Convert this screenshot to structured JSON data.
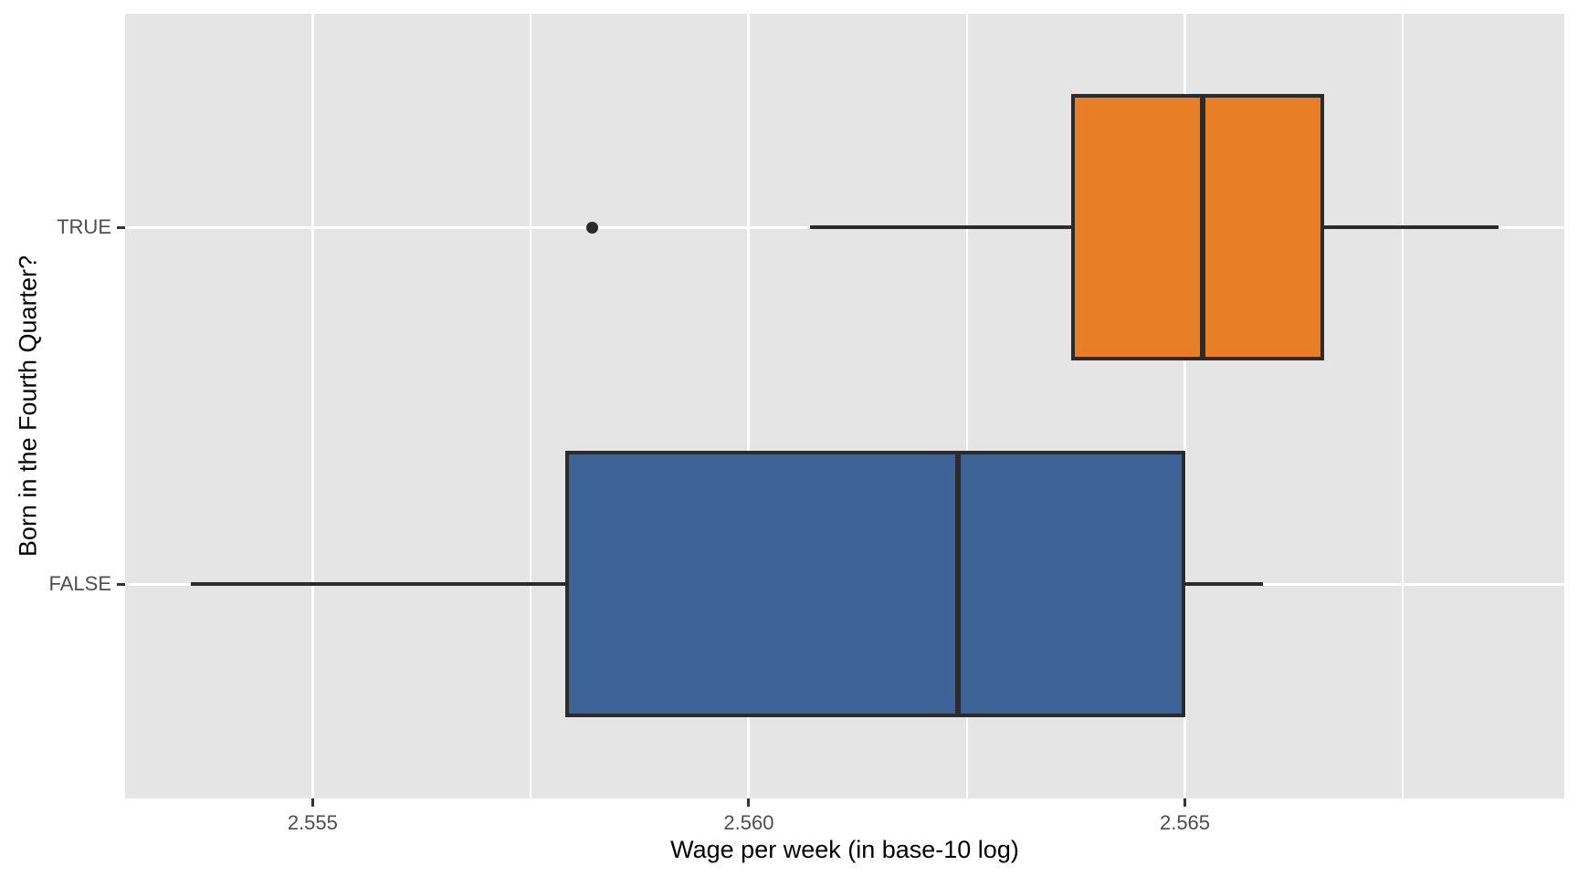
{
  "chart_data": {
    "type": "boxplot",
    "orientation": "horizontal",
    "title": "",
    "xlabel": "Wage per week (in base-10 log)",
    "ylabel": "Born in the Fourth Quarter?",
    "xlim": [
      2.55285,
      2.56935
    ],
    "x_tick_values": [
      2.555,
      2.56,
      2.565
    ],
    "x_tick_labels": [
      "2.555",
      "2.560",
      "2.565"
    ],
    "x_minor_gridlines": [
      2.5575,
      2.5625,
      2.5675
    ],
    "categories": [
      "TRUE",
      "FALSE"
    ],
    "series": [
      {
        "name": "TRUE",
        "color": "#E87E26",
        "whisker_low": 2.5607,
        "q1": 2.5637,
        "median": 2.5652,
        "q3": 2.5666,
        "whisker_high": 2.5686,
        "outliers": [
          2.5582
        ]
      },
      {
        "name": "FALSE",
        "color": "#3D6396",
        "whisker_low": 2.5536,
        "q1": 2.5579,
        "median": 2.5624,
        "q3": 2.565,
        "whisker_high": 2.5659,
        "outliers": []
      }
    ],
    "legend": "none",
    "grid": "on",
    "panel_bg": "#E5E5E5",
    "figure_bg": "#FFFFFF",
    "grid_color": "#FFFFFF",
    "box_border_color": "#2B2B2B",
    "tick_label_color": "#4D4D4D",
    "axis_title_color": "#000000",
    "tick_mark_color": "#333333"
  }
}
